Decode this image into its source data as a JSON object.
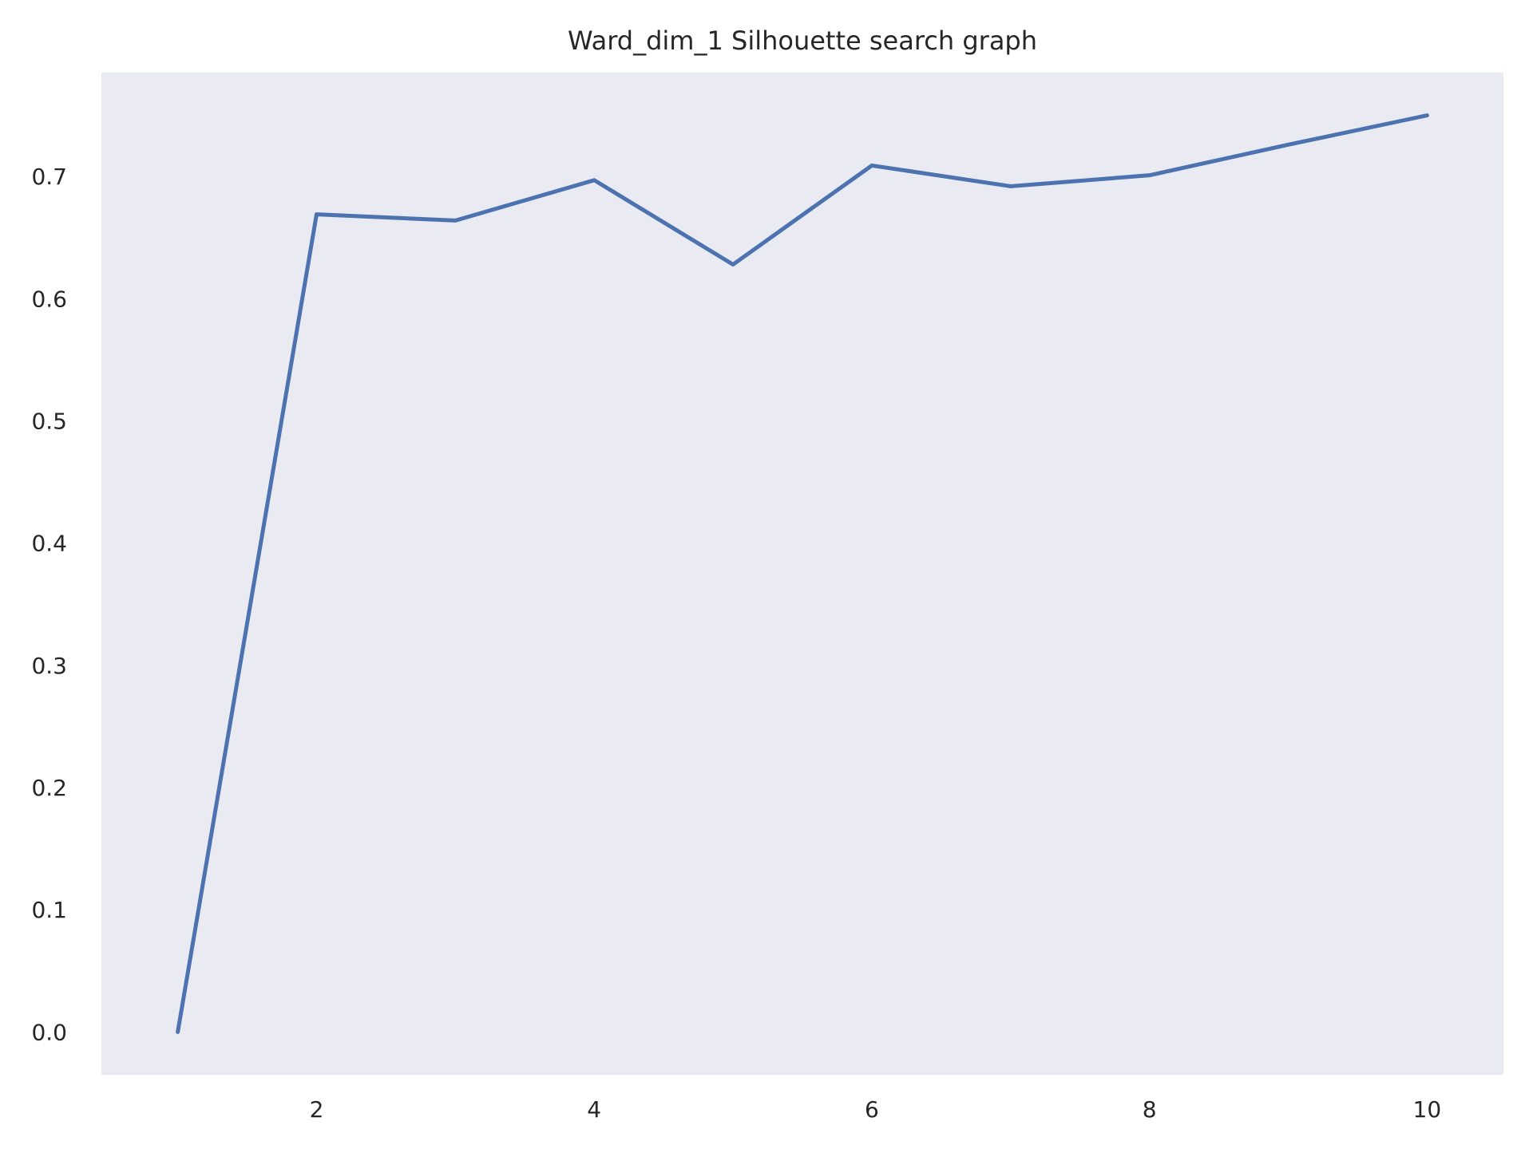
{
  "chart_data": {
    "type": "line",
    "title": "Ward_dim_1 Silhouette search graph",
    "xlabel": "",
    "ylabel": "",
    "x": [
      1,
      2,
      3,
      4,
      5,
      6,
      7,
      8,
      9,
      10
    ],
    "series": [
      {
        "values": [
          0.0,
          0.669,
          0.664,
          0.697,
          0.628,
          0.709,
          0.692,
          0.701,
          0.726,
          0.75
        ],
        "color": "#4c72b0"
      }
    ],
    "xlim": [
      0.45,
      10.55
    ],
    "ylim": [
      -0.035,
      0.785
    ],
    "xticks": [
      2,
      4,
      6,
      8,
      10
    ],
    "xtick_labels": [
      "2",
      "4",
      "6",
      "8",
      "10"
    ],
    "yticks": [
      0.0,
      0.1,
      0.2,
      0.3,
      0.4,
      0.5,
      0.6,
      0.7
    ],
    "ytick_labels": [
      "0.0",
      "0.1",
      "0.2",
      "0.3",
      "0.4",
      "0.5",
      "0.6",
      "0.7"
    ],
    "grid": false,
    "legend": "none",
    "plot_background": "#eaeaf2"
  }
}
